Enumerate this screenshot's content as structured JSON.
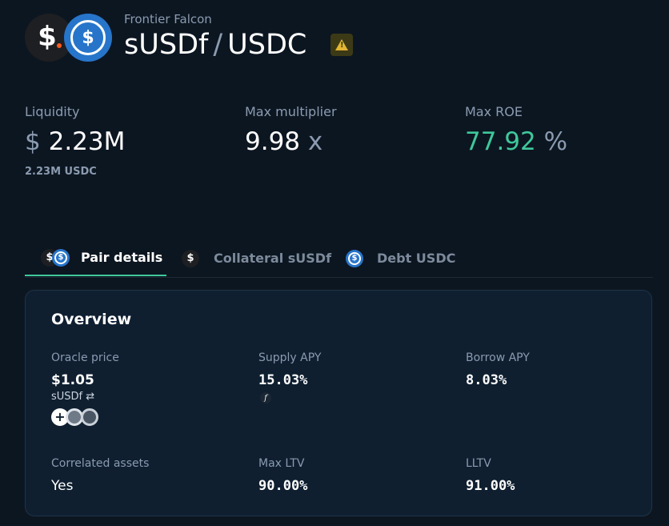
{
  "header": {
    "protocol": "Frontier Falcon",
    "collateral_symbol": "sUSDf",
    "separator": "/",
    "debt_symbol": "USDC",
    "warning_mark": "!"
  },
  "stats": {
    "liquidity": {
      "label": "Liquidity",
      "prefix": "$",
      "value": "2.23M",
      "sub": "2.23M USDC"
    },
    "max_multiplier": {
      "label": "Max multiplier",
      "value": "9.98",
      "suffix": "x"
    },
    "max_roe": {
      "label": "Max ROE",
      "value": "77.92",
      "suffix": "%"
    }
  },
  "tabs": [
    {
      "label": "Pair details",
      "active": true
    },
    {
      "label": "Collateral sUSDf",
      "active": false
    },
    {
      "label": "Debt USDC",
      "active": false
    }
  ],
  "overview": {
    "title": "Overview",
    "oracle_price": {
      "label": "Oracle price",
      "value": "$1.05",
      "sub": "sUSDf ⇄"
    },
    "supply_apy": {
      "label": "Supply APY",
      "value": "15.03%",
      "badge": "f"
    },
    "borrow_apy": {
      "label": "Borrow APY",
      "value": "8.03%"
    },
    "correlated_assets": {
      "label": "Correlated assets",
      "value": "Yes"
    },
    "max_ltv": {
      "label": "Max LTV",
      "value": "90.00%"
    },
    "lltv": {
      "label": "LLTV",
      "value": "91.00%"
    }
  },
  "colors": {
    "background": "#0c1621",
    "card": "#0f1f30",
    "accent_green": "#3fc89b",
    "usdc_blue": "#2775ca",
    "warning_yellow": "#e2b633"
  },
  "icons": [
    "susdf-token-icon",
    "usdc-token-icon",
    "warning-icon",
    "swap-icon",
    "oracle-source-icon"
  ]
}
